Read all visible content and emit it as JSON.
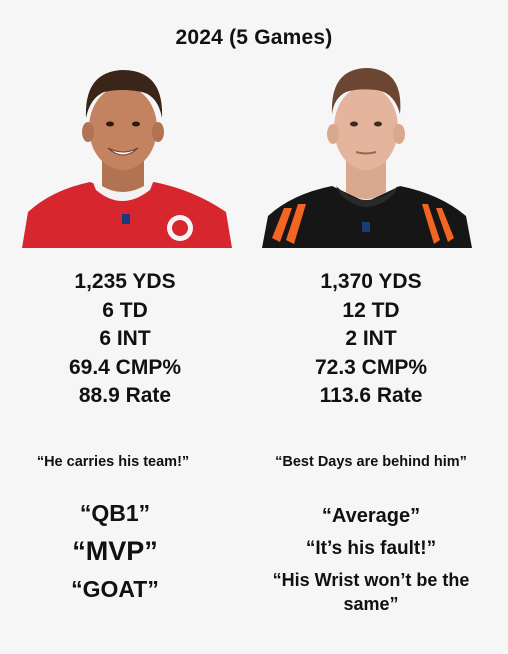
{
  "title": "2024 (5 Games)",
  "left_player": {
    "photo_icon": "player-headshot-red-jersey",
    "stats": [
      "1,235 YDS",
      "6 TD",
      "6 INT",
      "69.4 CMP%",
      "88.9 Rate"
    ],
    "small_quote": "“He carries his team!”",
    "big_quotes": [
      "“QB1”",
      "“MVP”",
      "“GOAT”"
    ],
    "jersey_color": "#d8262e"
  },
  "right_player": {
    "photo_icon": "player-headshot-black-jersey",
    "stats": [
      "1,370 YDS",
      "12 TD",
      "2 INT",
      "72.3 CMP%",
      "113.6 Rate"
    ],
    "small_quote": "“Best Days are behind him”",
    "big_quotes": [
      "“Average”",
      "“It’s his fault!”",
      "“His Wrist won’t be the same”"
    ],
    "jersey_color": "#161616"
  }
}
